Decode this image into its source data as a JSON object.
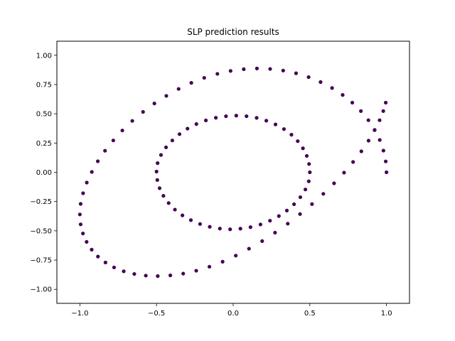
{
  "chart_data": {
    "type": "scatter",
    "title": "SLP prediction results",
    "xlabel": "",
    "ylabel": "",
    "xlim": [
      -1.15,
      1.15
    ],
    "ylim": [
      -1.12,
      1.12
    ],
    "xticks": [
      -1.0,
      -0.5,
      0.0,
      0.5,
      1.0
    ],
    "xtick_labels": [
      "−1.0",
      "−0.5",
      "0.0",
      "0.5",
      "1.0"
    ],
    "yticks": [
      -1.0,
      -0.75,
      -0.5,
      -0.25,
      0.0,
      0.25,
      0.5,
      0.75,
      1.0
    ],
    "ytick_labels": [
      "−1.00",
      "−0.75",
      "−0.50",
      "−0.25",
      "0.00",
      "0.25",
      "0.50",
      "0.75",
      "1.00"
    ],
    "grid": false,
    "marker_color": "#440154",
    "series": [
      {
        "x": [
          1.0,
          0.995,
          0.98,
          0.956,
          0.923,
          0.882,
          0.833,
          0.777,
          0.714,
          0.645,
          0.57,
          0.492,
          0.41,
          0.326,
          0.241,
          0.155,
          0.069,
          -0.017,
          -0.103,
          -0.189,
          -0.273,
          -0.356,
          -0.436,
          -0.514,
          -0.588,
          -0.658,
          -0.723,
          -0.782,
          -0.836,
          -0.883,
          -0.922,
          -0.955,
          -0.979,
          -0.995,
          -1.0,
          -0.995,
          -0.98,
          -0.956,
          -0.923,
          -0.882,
          -0.833,
          -0.777,
          -0.714,
          -0.645,
          -0.57,
          -0.492,
          -0.41,
          -0.326,
          -0.241,
          -0.155,
          -0.069,
          0.017,
          0.103,
          0.189,
          0.273,
          0.356,
          0.436,
          0.514,
          0.588,
          0.658,
          0.723,
          0.782,
          0.836,
          0.883,
          0.922,
          0.955,
          0.979,
          0.995,
          0.5,
          0.495,
          0.48,
          0.455,
          0.421,
          0.38,
          0.331,
          0.276,
          0.216,
          0.153,
          0.087,
          0.02,
          -0.047,
          -0.113,
          -0.178,
          -0.24,
          -0.298,
          -0.35,
          -0.397,
          -0.438,
          -0.471,
          -0.493,
          -0.5,
          -0.495,
          -0.48,
          -0.455,
          -0.421,
          -0.38,
          -0.331,
          -0.276,
          -0.216,
          -0.153,
          -0.087,
          -0.02,
          0.047,
          0.113,
          0.178,
          0.24,
          0.298,
          0.35,
          0.397,
          0.438,
          0.471,
          0.493
        ],
        "y": [
          0.0,
          0.093,
          0.185,
          0.276,
          0.362,
          0.445,
          0.523,
          0.595,
          0.661,
          0.72,
          0.771,
          0.813,
          0.846,
          0.869,
          0.883,
          0.887,
          0.881,
          0.866,
          0.841,
          0.807,
          0.764,
          0.712,
          0.653,
          0.588,
          0.516,
          0.439,
          0.357,
          0.272,
          0.184,
          0.094,
          0.003,
          -0.088,
          -0.179,
          -0.27,
          -0.36,
          -0.445,
          -0.523,
          -0.595,
          -0.661,
          -0.72,
          -0.771,
          -0.813,
          -0.846,
          -0.869,
          -0.883,
          -0.887,
          -0.881,
          -0.866,
          -0.841,
          -0.807,
          -0.764,
          -0.712,
          -0.653,
          -0.588,
          -0.516,
          -0.439,
          -0.357,
          -0.272,
          -0.184,
          -0.094,
          -0.003,
          0.088,
          0.179,
          0.27,
          0.36,
          0.445,
          0.523,
          0.595,
          0.0,
          0.071,
          0.14,
          0.205,
          0.266,
          0.321,
          0.369,
          0.409,
          0.441,
          0.465,
          0.479,
          0.484,
          0.479,
          0.466,
          0.443,
          0.412,
          0.373,
          0.326,
          0.272,
          0.213,
          0.148,
          0.078,
          0.006,
          -0.066,
          -0.136,
          -0.201,
          -0.263,
          -0.319,
          -0.368,
          -0.409,
          -0.442,
          -0.466,
          -0.481,
          -0.487,
          -0.482,
          -0.469,
          -0.446,
          -0.414,
          -0.374,
          -0.327,
          -0.273,
          -0.213,
          -0.147,
          -0.077
        ]
      }
    ]
  }
}
